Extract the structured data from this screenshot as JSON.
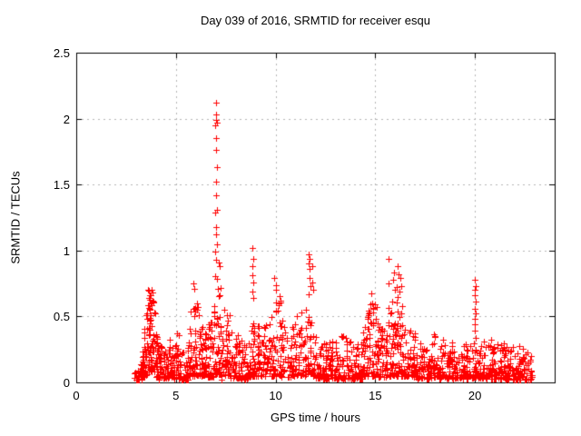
{
  "chart_data": {
    "type": "scatter",
    "title": "Day 039 of 2016, SRMTID for receiver esqu",
    "xlabel": "GPS time / hours",
    "ylabel": "SRMTID / TECUs",
    "xlim": [
      0,
      24
    ],
    "ylim": [
      0,
      2.5
    ],
    "xticks": [
      0,
      5,
      10,
      15,
      20
    ],
    "yticks": [
      0,
      0.5,
      1,
      1.5,
      2,
      2.5
    ],
    "xtick_labels": [
      "0",
      "5",
      "10",
      "15",
      "20"
    ],
    "ytick_labels": [
      "0",
      "0.5",
      "1",
      "1.5",
      "2",
      "2.5"
    ],
    "grid": true,
    "legend": "none",
    "marker": "plus",
    "marker_color": "#ff0000",
    "border_color": "#000000",
    "grid_color": "#b4b4b4",
    "data_time_range_hours": [
      2.9,
      22.85
    ],
    "max_value_tecu": 2.12,
    "seed": 1039,
    "density_exp": 2,
    "peak_points": [
      [
        7.0,
        2.12
      ],
      [
        7.02,
        2.03
      ],
      [
        7.0,
        1.99
      ],
      [
        7.04,
        1.97
      ],
      [
        6.99,
        1.95
      ],
      [
        7.01,
        1.85
      ],
      [
        7.02,
        1.76
      ],
      [
        7.04,
        1.63
      ],
      [
        7.02,
        1.52
      ],
      [
        7.0,
        1.42
      ],
      [
        7.07,
        1.31
      ],
      [
        6.97,
        1.29
      ],
      [
        7.01,
        1.18
      ],
      [
        7.0,
        1.12
      ],
      [
        7.05,
        1.05
      ],
      [
        6.98,
        0.99
      ],
      [
        7.0,
        0.93
      ],
      [
        7.15,
        0.91
      ],
      [
        7.2,
        0.88
      ],
      [
        8.85,
        1.02
      ],
      [
        8.87,
        0.94
      ],
      [
        8.83,
        0.88
      ],
      [
        8.85,
        0.81
      ],
      [
        8.88,
        0.76
      ],
      [
        8.84,
        0.69
      ],
      [
        8.86,
        0.64
      ],
      [
        9.95,
        0.79
      ],
      [
        10.0,
        0.74
      ],
      [
        10.03,
        0.7
      ],
      [
        11.68,
        0.97
      ],
      [
        11.7,
        0.94
      ],
      [
        11.66,
        0.9
      ],
      [
        11.72,
        0.86
      ],
      [
        11.7,
        0.79
      ],
      [
        11.74,
        0.73
      ],
      [
        11.68,
        0.67
      ],
      [
        11.82,
        0.88
      ],
      [
        11.85,
        0.76
      ],
      [
        11.88,
        0.7
      ],
      [
        15.65,
        0.94
      ],
      [
        15.68,
        0.75
      ],
      [
        15.9,
        0.78
      ],
      [
        15.95,
        0.83
      ],
      [
        16.1,
        0.88
      ],
      [
        16.15,
        0.82
      ],
      [
        16.25,
        0.79
      ],
      [
        16.3,
        0.73
      ],
      [
        16.2,
        0.69
      ],
      [
        20.0,
        0.78
      ],
      [
        20.02,
        0.73
      ],
      [
        19.98,
        0.7
      ],
      [
        20.0,
        0.66
      ],
      [
        20.03,
        0.61
      ],
      [
        20.0,
        0.56
      ],
      [
        20.02,
        0.52
      ],
      [
        19.99,
        0.48
      ],
      [
        20.01,
        0.44
      ],
      [
        20.0,
        0.39
      ],
      [
        20.02,
        0.34
      ],
      [
        3.78,
        0.7
      ],
      [
        3.82,
        0.68
      ],
      [
        3.75,
        0.66
      ],
      [
        5.88,
        0.75
      ],
      [
        5.92,
        0.71
      ],
      [
        3.05,
        0.02
      ],
      [
        4.15,
        0.02
      ],
      [
        5.3,
        0.02
      ],
      [
        7.3,
        0.02
      ],
      [
        8.45,
        0.02
      ]
    ],
    "scatter_bands": [
      [
        2.9,
        3.3,
        25,
        0.1,
        0.14,
        0.02
      ],
      [
        3.3,
        3.6,
        45,
        0.3,
        0.62,
        0.05
      ],
      [
        3.6,
        4.0,
        70,
        0.72,
        0.6,
        0.08
      ],
      [
        4.0,
        4.35,
        45,
        0.52,
        0.2,
        0.04
      ],
      [
        4.35,
        4.6,
        25,
        0.25,
        0.22,
        0.03
      ],
      [
        4.6,
        4.9,
        30,
        0.3,
        0.38,
        0.04
      ],
      [
        4.9,
        5.2,
        30,
        0.45,
        0.35,
        0.03
      ],
      [
        5.2,
        5.6,
        25,
        0.25,
        0.2,
        0.02
      ],
      [
        5.6,
        6.1,
        55,
        0.45,
        0.75,
        0.05
      ],
      [
        6.1,
        6.5,
        45,
        0.6,
        0.38,
        0.05
      ],
      [
        6.5,
        6.9,
        40,
        0.4,
        0.5,
        0.04
      ],
      [
        6.9,
        7.25,
        45,
        0.85,
        0.75,
        0.06
      ],
      [
        7.25,
        7.7,
        45,
        0.65,
        0.5,
        0.05
      ],
      [
        7.7,
        8.4,
        55,
        0.45,
        0.3,
        0.03
      ],
      [
        8.4,
        8.75,
        35,
        0.28,
        0.38,
        0.03
      ],
      [
        8.75,
        9.05,
        30,
        0.55,
        0.45,
        0.05
      ],
      [
        9.05,
        9.6,
        50,
        0.42,
        0.5,
        0.05
      ],
      [
        9.6,
        10.25,
        55,
        0.5,
        0.68,
        0.05
      ],
      [
        10.25,
        10.8,
        45,
        0.55,
        0.4,
        0.04
      ],
      [
        10.8,
        11.4,
        50,
        0.45,
        0.58,
        0.05
      ],
      [
        11.4,
        11.95,
        45,
        0.6,
        0.55,
        0.05
      ],
      [
        11.95,
        12.6,
        55,
        0.45,
        0.3,
        0.03
      ],
      [
        12.6,
        13.3,
        55,
        0.32,
        0.3,
        0.03
      ],
      [
        13.3,
        13.9,
        45,
        0.38,
        0.3,
        0.03
      ],
      [
        13.9,
        14.35,
        40,
        0.28,
        0.32,
        0.03
      ],
      [
        14.35,
        14.75,
        45,
        0.4,
        0.62,
        0.05
      ],
      [
        14.75,
        15.15,
        45,
        0.75,
        0.55,
        0.05
      ],
      [
        15.15,
        15.55,
        35,
        0.45,
        0.4,
        0.04
      ],
      [
        15.55,
        16.0,
        45,
        0.55,
        0.65,
        0.05
      ],
      [
        16.0,
        16.55,
        55,
        0.78,
        0.6,
        0.05
      ],
      [
        16.55,
        17.1,
        50,
        0.48,
        0.35,
        0.04
      ],
      [
        17.1,
        17.8,
        55,
        0.38,
        0.32,
        0.03
      ],
      [
        17.8,
        18.5,
        60,
        0.38,
        0.33,
        0.03
      ],
      [
        18.5,
        19.3,
        60,
        0.33,
        0.3,
        0.03
      ],
      [
        19.3,
        19.9,
        50,
        0.32,
        0.28,
        0.03
      ],
      [
        19.9,
        20.15,
        20,
        0.3,
        0.28,
        0.04
      ],
      [
        20.15,
        20.8,
        55,
        0.32,
        0.3,
        0.03
      ],
      [
        20.8,
        21.5,
        60,
        0.35,
        0.3,
        0.03
      ],
      [
        21.5,
        22.2,
        60,
        0.3,
        0.28,
        0.02
      ],
      [
        22.2,
        22.85,
        55,
        0.28,
        0.22,
        0.02
      ]
    ]
  }
}
